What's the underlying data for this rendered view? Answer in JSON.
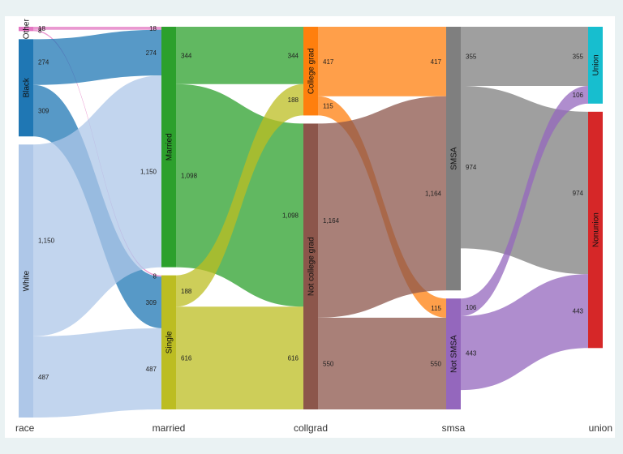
{
  "chart_data": {
    "type": "sankey",
    "title": "",
    "stages": [
      "race",
      "married",
      "collgrad",
      "smsa",
      "union"
    ],
    "nodes": [
      {
        "id": "Other",
        "stage": 0,
        "label": "Other",
        "color": "#e377c2"
      },
      {
        "id": "Black",
        "stage": 0,
        "label": "Black",
        "color": "#1f77b4"
      },
      {
        "id": "White",
        "stage": 0,
        "label": "White",
        "color": "#aec7e8"
      },
      {
        "id": "Married",
        "stage": 1,
        "label": "Married",
        "color": "#2ca02c"
      },
      {
        "id": "Single",
        "stage": 1,
        "label": "Single",
        "color": "#bcbd22"
      },
      {
        "id": "College grad",
        "stage": 2,
        "label": "College grad",
        "color": "#ff7f0e"
      },
      {
        "id": "Not college grad",
        "stage": 2,
        "label": "Not college grad",
        "color": "#8c564b"
      },
      {
        "id": "SMSA",
        "stage": 3,
        "label": "SMSA",
        "color": "#7f7f7f"
      },
      {
        "id": "Not SMSA",
        "stage": 3,
        "label": "Not SMSA",
        "color": "#9467bd"
      },
      {
        "id": "Union",
        "stage": 4,
        "label": "Union",
        "color": "#17becf"
      },
      {
        "id": "Nonunion",
        "stage": 4,
        "label": "Nonunion",
        "color": "#d62728"
      }
    ],
    "links": [
      {
        "source": "Other",
        "target": "Married",
        "value": 18,
        "label_left": "18",
        "label_right": "18",
        "color": "#e377c2"
      },
      {
        "source": "Other",
        "target": "Single",
        "value": 8,
        "label_left": "8",
        "label_right": "8",
        "color": "#e377c2"
      },
      {
        "source": "Black",
        "target": "Married",
        "value": 274,
        "label_left": "274",
        "label_right": "274",
        "color": "#1f77b4"
      },
      {
        "source": "Black",
        "target": "Single",
        "value": 309,
        "label_left": "309",
        "label_right": "309",
        "color": "#1f77b4"
      },
      {
        "source": "White",
        "target": "Married",
        "value": 1150,
        "label_left": "1,150",
        "label_right": "1,150",
        "color": "#aec7e8"
      },
      {
        "source": "White",
        "target": "Single",
        "value": 487,
        "label_left": "487",
        "label_right": "487",
        "color": "#aec7e8"
      },
      {
        "source": "Married",
        "target": "College grad",
        "value": 344,
        "label_left": "344",
        "label_right": "344",
        "color": "#2ca02c"
      },
      {
        "source": "Married",
        "target": "Not college grad",
        "value": 1098,
        "label_left": "1,098",
        "label_right": "1,098",
        "color": "#2ca02c"
      },
      {
        "source": "Single",
        "target": "College grad",
        "value": 188,
        "label_left": "188",
        "label_right": "188",
        "color": "#bcbd22"
      },
      {
        "source": "Single",
        "target": "Not college grad",
        "value": 616,
        "label_left": "616",
        "label_right": "616",
        "color": "#bcbd22"
      },
      {
        "source": "College grad",
        "target": "SMSA",
        "value": 417,
        "label_left": "417",
        "label_right": "417",
        "color": "#ff7f0e"
      },
      {
        "source": "College grad",
        "target": "Not SMSA",
        "value": 115,
        "label_left": "115",
        "label_right": "115",
        "color": "#ff7f0e"
      },
      {
        "source": "Not college grad",
        "target": "SMSA",
        "value": 1164,
        "label_left": "1,164",
        "label_right": "1,164",
        "color": "#8c564b"
      },
      {
        "source": "Not college grad",
        "target": "Not SMSA",
        "value": 550,
        "label_left": "550",
        "label_right": "550",
        "color": "#8c564b"
      },
      {
        "source": "SMSA",
        "target": "Union",
        "value": 355,
        "label_left": "355",
        "label_right": "355",
        "color": "#7f7f7f"
      },
      {
        "source": "SMSA",
        "target": "Nonunion",
        "value": 974,
        "label_left": "974",
        "label_right": "974",
        "color": "#7f7f7f"
      },
      {
        "source": "Not SMSA",
        "target": "Union",
        "value": 106,
        "label_left": "106",
        "label_right": "106",
        "color": "#9467bd"
      },
      {
        "source": "Not SMSA",
        "target": "Nonunion",
        "value": 443,
        "label_left": "443",
        "label_right": "443",
        "color": "#9467bd"
      }
    ]
  }
}
